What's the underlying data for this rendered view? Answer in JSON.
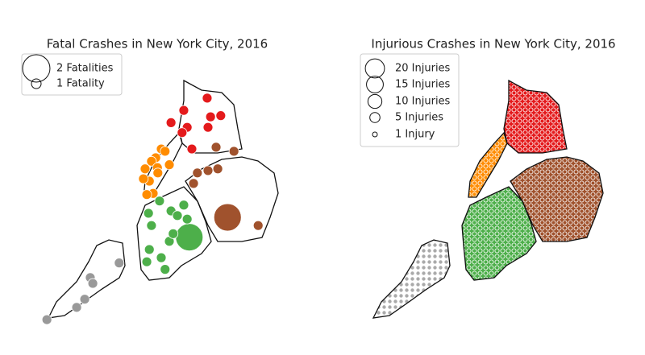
{
  "maps": [
    {
      "title": "Fatal Crashes in New York City, 2016",
      "xlim": [
        -74.25,
        -73.7
      ],
      "ylim": [
        40.5,
        40.92
      ],
      "legend": [
        {
          "value": 2,
          "label": "2 Fatalities"
        },
        {
          "value": 1,
          "label": "1 Fatality"
        }
      ],
      "series": [
        {
          "color": "#e41a1c",
          "x": [
            -73.922,
            -73.914,
            -73.926,
            -73.952,
            -73.867,
            -73.859,
            -73.835,
            -73.865,
            -73.903
          ],
          "y": [
            40.862,
            40.833,
            40.824,
            40.841,
            40.883,
            40.851,
            40.853,
            40.833,
            40.796
          ],
          "sizes": [
            1,
            1,
            1,
            1,
            1,
            1,
            1,
            1,
            1
          ]
        },
        {
          "color": "#ff8c00",
          "x": [
            -73.975,
            -73.988,
            -73.966,
            -73.998,
            -73.956,
            -74.013,
            -73.984,
            -74.003,
            -74.017,
            -73.994,
            -74.009,
            -73.983
          ],
          "y": [
            40.796,
            40.781,
            40.792,
            40.775,
            40.769,
            40.762,
            40.764,
            40.741,
            40.745,
            40.72,
            40.718,
            40.755
          ],
          "sizes": [
            1,
            1,
            1,
            1,
            1,
            1,
            1,
            1,
            1,
            1,
            1,
            1
          ]
        },
        {
          "color": "#a0522d",
          "x": [
            -73.804,
            -73.846,
            -73.89,
            -73.865,
            -73.842,
            -73.899,
            -73.747,
            -73.819
          ],
          "y": [
            40.792,
            40.799,
            40.755,
            40.759,
            40.762,
            40.737,
            40.665,
            40.679
          ],
          "sizes": [
            1,
            1,
            1,
            1,
            1,
            1,
            1,
            2
          ]
        },
        {
          "color": "#4daf4a",
          "x": [
            -73.909,
            -73.952,
            -73.979,
            -73.937,
            -73.914,
            -74.005,
            -73.998,
            -73.922,
            -74.003,
            -73.975,
            -73.966,
            -73.956,
            -73.947,
            -74.009
          ],
          "y": [
            40.645,
            40.69,
            40.707,
            40.682,
            40.676,
            40.686,
            40.665,
            40.7,
            40.624,
            40.61,
            40.59,
            40.638,
            40.651,
            40.603
          ],
          "sizes": [
            2,
            1,
            1,
            1,
            1,
            1,
            1,
            1,
            1,
            1,
            1,
            1,
            1,
            1
          ]
        },
        {
          "color": "#999999",
          "x": [
            -74.074,
            -74.142,
            -74.136,
            -74.155,
            -74.174,
            -74.244
          ],
          "y": [
            40.601,
            40.576,
            40.566,
            40.539,
            40.525,
            40.504
          ],
          "sizes": [
            1,
            1,
            1,
            1,
            1,
            1
          ]
        }
      ]
    },
    {
      "title": "Injurious Crashes in New York City, 2016",
      "legend": [
        {
          "value": 20,
          "label": "20 Injuries"
        },
        {
          "value": 15,
          "label": "15 Injuries"
        },
        {
          "value": 10,
          "label": "10 Injuries"
        },
        {
          "value": 5,
          "label": "5 Injuries"
        },
        {
          "value": 1,
          "label": "1 Injury"
        }
      ]
    }
  ]
}
